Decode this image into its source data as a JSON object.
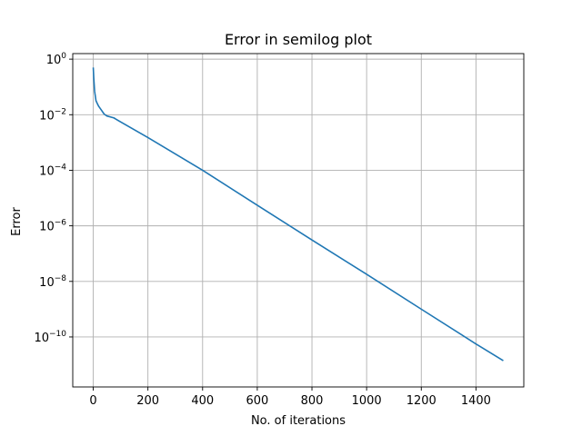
{
  "chart_data": {
    "type": "line",
    "title": "Error in semilog plot",
    "xlabel": "No. of iterations",
    "ylabel": "Error",
    "yscale": "log",
    "xlim": [
      -75,
      1575
    ],
    "ylim_log10": [
      -11.8,
      0.2
    ],
    "grid": true,
    "colors": {
      "line": "#1f77b4",
      "grid": "#b0b0b0",
      "axes": "#000000"
    },
    "x_ticks": [
      {
        "value": 0,
        "label": "0"
      },
      {
        "value": 200,
        "label": "200"
      },
      {
        "value": 400,
        "label": "400"
      },
      {
        "value": 600,
        "label": "600"
      },
      {
        "value": 800,
        "label": "800"
      },
      {
        "value": 1000,
        "label": "1000"
      },
      {
        "value": 1200,
        "label": "1200"
      },
      {
        "value": 1400,
        "label": "1400"
      }
    ],
    "y_ticks": [
      {
        "log10": 0,
        "base": "10",
        "exp": "0"
      },
      {
        "log10": -2,
        "base": "10",
        "exp": "−2"
      },
      {
        "log10": -4,
        "base": "10",
        "exp": "−4"
      },
      {
        "log10": -6,
        "base": "10",
        "exp": "−6"
      },
      {
        "log10": -8,
        "base": "10",
        "exp": "−8"
      },
      {
        "log10": -10,
        "base": "10",
        "exp": "−10"
      }
    ],
    "series": [
      {
        "x": [
          0,
          2,
          5,
          10,
          15,
          20,
          30,
          40,
          50,
          75,
          100,
          200,
          400,
          600,
          800,
          1000,
          1200,
          1400,
          1500
        ],
        "y": [
          0.5,
          0.2,
          0.07,
          0.032,
          0.025,
          0.02,
          0.0145,
          0.0105,
          0.009,
          0.0077,
          0.0055,
          0.0015,
          0.0001,
          5.5e-06,
          3.1e-07,
          1.8e-08,
          1e-09,
          5.6e-11,
          1.4e-11
        ]
      }
    ]
  }
}
